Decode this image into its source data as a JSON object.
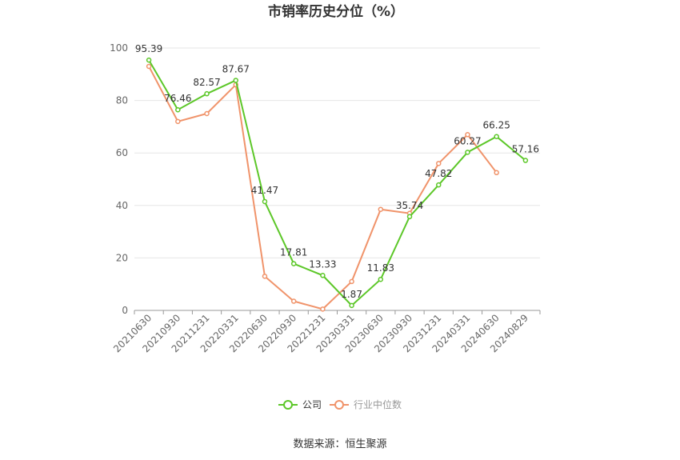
{
  "chart_data": {
    "type": "line",
    "title": "市销率历史分位（%）",
    "xlabel": "",
    "ylabel": "",
    "ylim": [
      0,
      100
    ],
    "yticks": [
      0,
      20,
      40,
      60,
      80,
      100
    ],
    "categories": [
      "20210630",
      "20210930",
      "20211231",
      "20220331",
      "20220630",
      "20220930",
      "20221231",
      "20230331",
      "20230630",
      "20230930",
      "20231231",
      "20240331",
      "20240630",
      "20240829"
    ],
    "series": [
      {
        "name": "公司",
        "color": "#5cc728",
        "values": [
          95.39,
          76.46,
          82.57,
          87.67,
          41.47,
          17.81,
          13.33,
          1.87,
          11.83,
          35.74,
          47.82,
          60.27,
          66.25,
          57.16
        ],
        "labels": [
          "95.39",
          "76.46",
          "82.57",
          "87.67",
          "41.47",
          "17.81",
          "13.33",
          "1.87",
          "11.83",
          "35.74",
          "47.82",
          "60.27",
          "66.25",
          "57.16"
        ]
      },
      {
        "name": "行业中位数",
        "color": "#f0936a",
        "values": [
          93,
          72,
          75,
          86,
          13,
          3.5,
          0.5,
          11,
          38.5,
          37,
          56,
          67,
          52.5,
          null
        ]
      }
    ],
    "grid": true,
    "legend": "bottom-center"
  },
  "footer": {
    "source": "数据来源：恒生聚源"
  }
}
